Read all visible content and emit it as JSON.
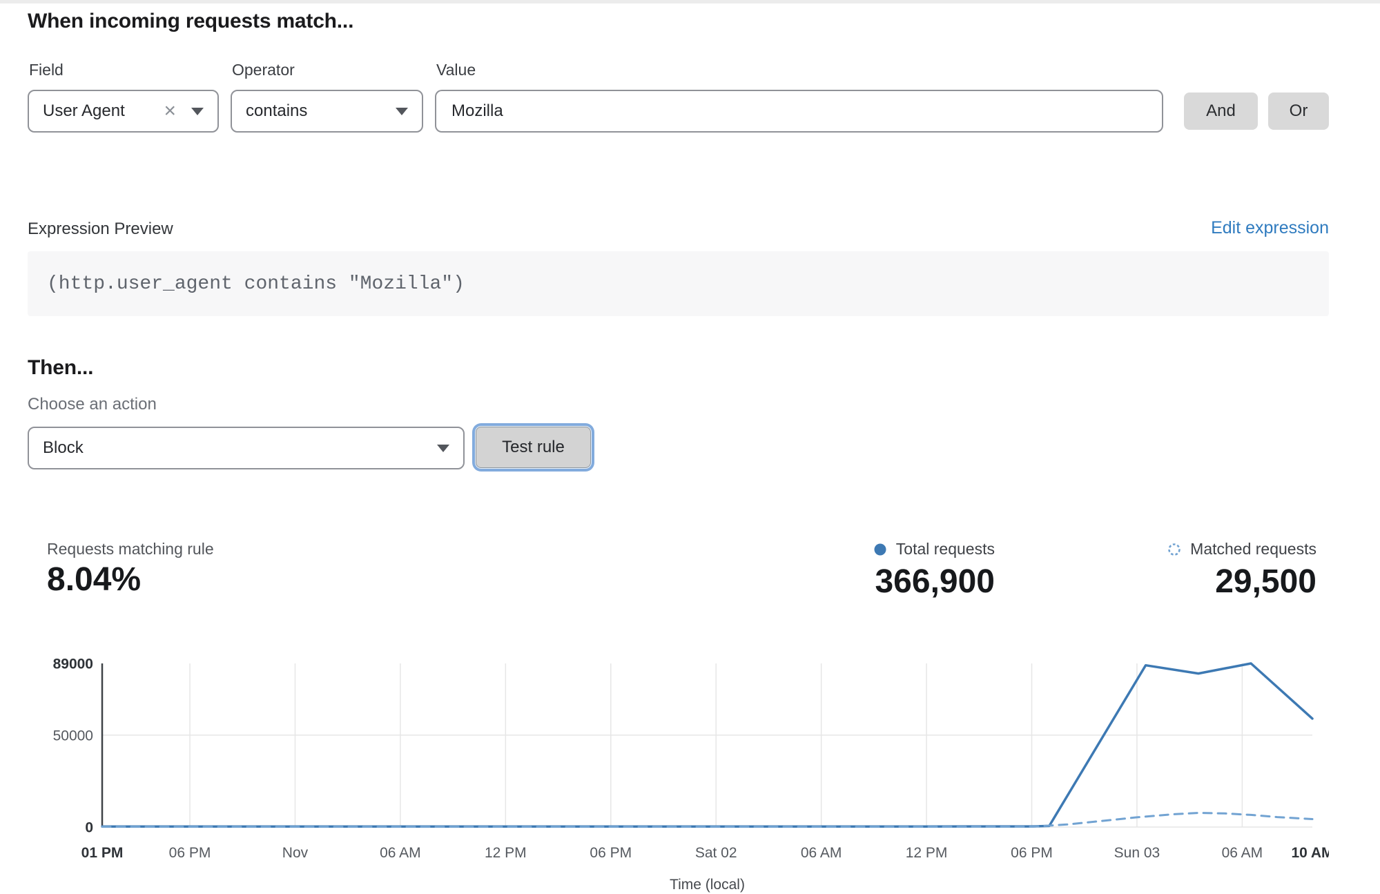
{
  "rule_builder": {
    "heading": "When incoming requests match...",
    "field": {
      "label": "Field",
      "selected": "User Agent"
    },
    "operator": {
      "label": "Operator",
      "selected": "contains"
    },
    "value": {
      "label": "Value",
      "value": "Mozilla"
    },
    "and_label": "And",
    "or_label": "Or"
  },
  "expression": {
    "label": "Expression Preview",
    "edit_link": "Edit expression",
    "code": "(http.user_agent contains \"Mozilla\")"
  },
  "action": {
    "heading": "Then...",
    "choose_label": "Choose an action",
    "selected": "Block",
    "test_button": "Test rule"
  },
  "stats": {
    "matching": {
      "label": "Requests matching rule",
      "value": "8.04%"
    },
    "total": {
      "label": "Total requests",
      "value": "366,900"
    },
    "matched": {
      "label": "Matched requests",
      "value": "29,500"
    }
  },
  "colors": {
    "link_blue": "#2f7bbf",
    "total_line": "#3d79b3",
    "matched_line": "#72a3d2",
    "gridline": "#e6e6e6",
    "axis": "#3f4348",
    "button_gray": "#d9d9d9",
    "focus_ring": "#82abdd"
  },
  "chart_data": {
    "type": "line",
    "title": "",
    "xlabel": "Time (local)",
    "ylabel": "",
    "ylim": [
      0,
      89000
    ],
    "x_range_hours": [
      0,
      69
    ],
    "grid": true,
    "legend_position": "top-right",
    "y_ticks": [
      {
        "label": "89000",
        "value": 89000,
        "bold": true,
        "gridline": false
      },
      {
        "label": "50000",
        "value": 50000,
        "bold": false,
        "gridline": true
      },
      {
        "label": "0",
        "value": 0,
        "bold": true,
        "gridline": true
      }
    ],
    "x_ticks": [
      {
        "label": "01 PM",
        "hour": 0,
        "bold": true,
        "gridline": false
      },
      {
        "label": "06 PM",
        "hour": 5,
        "bold": false,
        "gridline": true
      },
      {
        "label": "Nov",
        "hour": 11,
        "bold": false,
        "gridline": true
      },
      {
        "label": "06 AM",
        "hour": 17,
        "bold": false,
        "gridline": true
      },
      {
        "label": "12 PM",
        "hour": 23,
        "bold": false,
        "gridline": true
      },
      {
        "label": "06 PM",
        "hour": 29,
        "bold": false,
        "gridline": true
      },
      {
        "label": "Sat 02",
        "hour": 35,
        "bold": false,
        "gridline": true
      },
      {
        "label": "06 AM",
        "hour": 41,
        "bold": false,
        "gridline": true
      },
      {
        "label": "12 PM",
        "hour": 47,
        "bold": false,
        "gridline": true
      },
      {
        "label": "06 PM",
        "hour": 53,
        "bold": false,
        "gridline": true
      },
      {
        "label": "Sun 03",
        "hour": 59,
        "bold": false,
        "gridline": true
      },
      {
        "label": "06 AM",
        "hour": 65,
        "bold": false,
        "gridline": true
      },
      {
        "label": "10 AM",
        "hour": 69,
        "bold": true,
        "gridline": false
      }
    ],
    "series": [
      {
        "name": "Total requests",
        "style": "solid",
        "color": "#3d79b3",
        "points": [
          [
            0,
            300
          ],
          [
            5,
            300
          ],
          [
            11,
            300
          ],
          [
            17,
            300
          ],
          [
            23,
            300
          ],
          [
            29,
            300
          ],
          [
            35,
            300
          ],
          [
            41,
            300
          ],
          [
            47,
            300
          ],
          [
            53,
            350
          ],
          [
            54,
            600
          ],
          [
            59.5,
            88000
          ],
          [
            62.5,
            83500
          ],
          [
            65.5,
            89000
          ],
          [
            69,
            59000
          ]
        ]
      },
      {
        "name": "Matched requests",
        "style": "dashed",
        "color": "#72a3d2",
        "points": [
          [
            0,
            150
          ],
          [
            5,
            150
          ],
          [
            11,
            150
          ],
          [
            17,
            150
          ],
          [
            23,
            150
          ],
          [
            29,
            150
          ],
          [
            35,
            150
          ],
          [
            41,
            150
          ],
          [
            47,
            150
          ],
          [
            53,
            200
          ],
          [
            55,
            1400
          ],
          [
            57,
            3300
          ],
          [
            59,
            5300
          ],
          [
            61,
            6900
          ],
          [
            62.5,
            7700
          ],
          [
            64,
            7400
          ],
          [
            65.5,
            6600
          ],
          [
            67,
            5400
          ],
          [
            69,
            4300
          ]
        ]
      }
    ]
  }
}
